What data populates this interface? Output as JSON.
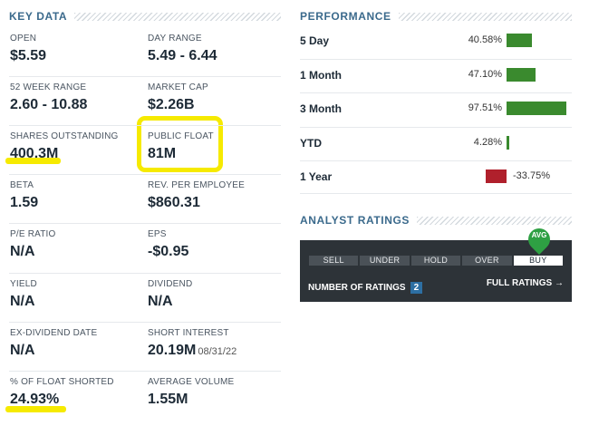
{
  "key_data": {
    "title": "KEY DATA",
    "items": [
      {
        "label": "OPEN",
        "value": "$5.59"
      },
      {
        "label": "DAY RANGE",
        "value": "5.49 - 6.44"
      },
      {
        "label": "52 WEEK RANGE",
        "value": "2.60 - 10.88"
      },
      {
        "label": "MARKET CAP",
        "value": "$2.26B"
      },
      {
        "label": "SHARES OUTSTANDING",
        "value": "400.3M"
      },
      {
        "label": "PUBLIC FLOAT",
        "value": "81M"
      },
      {
        "label": "BETA",
        "value": "1.59"
      },
      {
        "label": "REV. PER EMPLOYEE",
        "value": "$860.31"
      },
      {
        "label": "P/E RATIO",
        "value": "N/A"
      },
      {
        "label": "EPS",
        "value": "-$0.95"
      },
      {
        "label": "YIELD",
        "value": "N/A"
      },
      {
        "label": "DIVIDEND",
        "value": "N/A"
      },
      {
        "label": "EX-DIVIDEND DATE",
        "value": "N/A"
      },
      {
        "label": "SHORT INTEREST",
        "value": "20.19M",
        "sub": "08/31/22"
      },
      {
        "label": "% OF FLOAT SHORTED",
        "value": "24.93%"
      },
      {
        "label": "AVERAGE VOLUME",
        "value": "1.55M"
      }
    ]
  },
  "performance": {
    "title": "PERFORMANCE",
    "rows": [
      {
        "label": "5 Day",
        "value": "40.58%",
        "pct": 40.58,
        "color": "#3a8a2e"
      },
      {
        "label": "1 Month",
        "value": "47.10%",
        "pct": 47.1,
        "color": "#3a8a2e"
      },
      {
        "label": "3 Month",
        "value": "97.51%",
        "pct": 97.51,
        "color": "#3a8a2e"
      },
      {
        "label": "YTD",
        "value": "4.28%",
        "pct": 4.28,
        "color": "#3a8a2e"
      },
      {
        "label": "1 Year",
        "value": "-33.75%",
        "pct": -33.75,
        "color": "#b0202c"
      }
    ]
  },
  "analyst_ratings": {
    "title": "ANALYST RATINGS",
    "scale": [
      "SELL",
      "UNDER",
      "HOLD",
      "OVER",
      "BUY"
    ],
    "selected": "BUY",
    "avg_label": "AVG",
    "number_label": "NUMBER OF RATINGS",
    "number": "2",
    "full_ratings_label": "FULL RATINGS →"
  }
}
